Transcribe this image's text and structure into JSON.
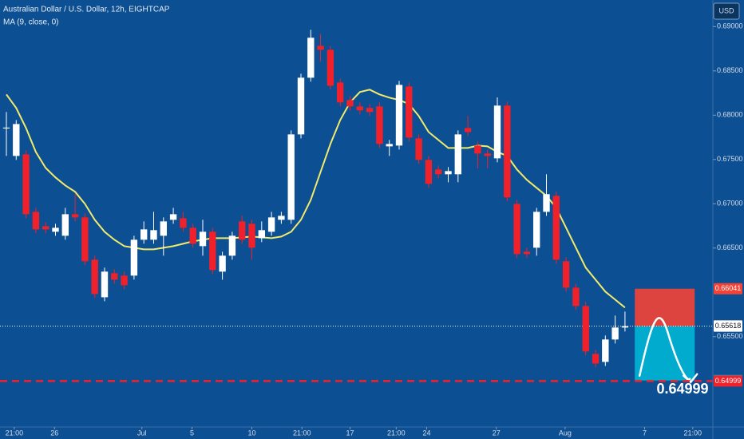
{
  "chart_data": {
    "type": "candlestick",
    "title": "Australian Dollar / U.S. Dollar, 12h, EIGHTCAP",
    "currency": "USD",
    "up_color": "#ffffff",
    "down_color": "#f0212b",
    "open": [
      0.6785,
      0.6754,
      0.67558,
      0.66909,
      0.66747,
      0.66684,
      0.66639,
      0.66882,
      0.66846,
      0.66369,
      0.65945,
      0.66216,
      0.66189,
      0.66189,
      0.66594,
      0.66594,
      0.66639,
      0.66819,
      0.66837,
      0.66729,
      0.66522,
      0.66684,
      0.66234,
      0.66414,
      0.66801,
      0.66774,
      0.66612,
      0.66684,
      0.66819,
      0.66819,
      0.67783,
      0.68423,
      0.68783,
      0.68738,
      0.68369,
      0.68171,
      0.68099,
      0.68081,
      0.68099,
      0.67648,
      0.67657,
      0.68324,
      0.67738,
      0.67495,
      0.67387,
      0.67333,
      0.67333,
      0.67855,
      0.67657,
      0.67567,
      0.67513,
      0.68108,
      0.66999,
      0.66459,
      0.66504,
      0.66909,
      0.6709,
      0.66351,
      0.66053,
      0.65846,
      0.65306,
      0.65215,
      0.65468,
      0.65603
    ],
    "high": [
      0.68036,
      0.67945,
      0.67603,
      0.66954,
      0.66792,
      0.66774,
      0.66954,
      0.67108,
      0.66891,
      0.66414,
      0.66279,
      0.66261,
      0.66234,
      0.66639,
      0.66801,
      0.66909,
      0.66846,
      0.66954,
      0.66909,
      0.66774,
      0.66819,
      0.66729,
      0.66459,
      0.66684,
      0.66864,
      0.66819,
      0.66801,
      0.66909,
      0.66909,
      0.67828,
      0.68468,
      0.68964,
      0.68919,
      0.68783,
      0.68414,
      0.68216,
      0.68144,
      0.68126,
      0.68144,
      0.6772,
      0.68387,
      0.68369,
      0.67783,
      0.6754,
      0.67432,
      0.67414,
      0.67828,
      0.6799,
      0.67702,
      0.67612,
      0.682,
      0.68153,
      0.67044,
      0.66504,
      0.66954,
      0.67333,
      0.67135,
      0.66396,
      0.66098,
      0.65891,
      0.65351,
      0.65513,
      0.65738,
      0.65783
    ],
    "low": [
      0.6754,
      0.67495,
      0.66837,
      0.66666,
      0.66666,
      0.66639,
      0.66594,
      0.66801,
      0.66306,
      0.65936,
      0.659,
      0.66098,
      0.66035,
      0.66144,
      0.66549,
      0.66549,
      0.66414,
      0.66774,
      0.66684,
      0.66504,
      0.66414,
      0.66207,
      0.66143,
      0.66369,
      0.66549,
      0.66369,
      0.66567,
      0.66639,
      0.66774,
      0.66774,
      0.67738,
      0.68378,
      0.68603,
      0.68288,
      0.68099,
      0.68054,
      0.68009,
      0.67991,
      0.6763,
      0.6754,
      0.67612,
      0.67702,
      0.6745,
      0.6718,
      0.67288,
      0.67243,
      0.67243,
      0.67765,
      0.674,
      0.674,
      0.67468,
      0.67027,
      0.66387,
      0.66387,
      0.66414,
      0.66864,
      0.66324,
      0.66008,
      0.65801,
      0.65288,
      0.65152,
      0.6517,
      0.65423,
      0.65558
    ],
    "close": [
      0.6786,
      0.679,
      0.66882,
      0.66711,
      0.66711,
      0.66729,
      0.66882,
      0.66846,
      0.66351,
      0.65981,
      0.66234,
      0.66143,
      0.6608,
      0.66594,
      0.66711,
      0.66702,
      0.66801,
      0.66882,
      0.66729,
      0.66549,
      0.66684,
      0.66252,
      0.66414,
      0.66639,
      0.66594,
      0.66504,
      0.66702,
      0.66846,
      0.66864,
      0.67783,
      0.68423,
      0.68874,
      0.68738,
      0.68333,
      0.68144,
      0.68099,
      0.68054,
      0.68036,
      0.67675,
      0.67675,
      0.68342,
      0.67747,
      0.67495,
      0.67225,
      0.67333,
      0.67369,
      0.67783,
      0.6781,
      0.67567,
      0.6754,
      0.68108,
      0.67072,
      0.66432,
      0.66432,
      0.66909,
      0.67108,
      0.66369,
      0.66053,
      0.65846,
      0.65333,
      0.65197,
      0.65468,
      0.65603,
      0.65618
    ],
    "ma": {
      "name": "MA (9, close, 0)",
      "color": "#f3ea6a",
      "values": [
        0.68234,
        0.68081,
        0.67855,
        0.67585,
        0.67405,
        0.67297,
        0.67207,
        0.67135,
        0.66999,
        0.66819,
        0.66684,
        0.66594,
        0.66522,
        0.66504,
        0.66486,
        0.66486,
        0.66504,
        0.66522,
        0.66549,
        0.66576,
        0.66594,
        0.66612,
        0.66612,
        0.66612,
        0.66621,
        0.6663,
        0.66621,
        0.66612,
        0.6663,
        0.66684,
        0.66819,
        0.67044,
        0.6736,
        0.67675,
        0.67945,
        0.68144,
        0.68261,
        0.68288,
        0.68234,
        0.68198,
        0.68171,
        0.68126,
        0.67991,
        0.6781,
        0.6772,
        0.6763,
        0.6763,
        0.6763,
        0.67657,
        0.67648,
        0.67585,
        0.6754,
        0.67387,
        0.6727,
        0.6718,
        0.6709,
        0.66954,
        0.66729,
        0.66504,
        0.66279,
        0.66143,
        0.66008,
        0.65918,
        0.65828
      ]
    },
    "xlim": [
      -0.65,
      71.95
    ],
    "ylim": [
      0.6448,
      0.693
    ],
    "xticks": [
      {
        "value": 0.8,
        "label": "21:00"
      },
      {
        "value": 4.9,
        "label": "26"
      },
      {
        "value": 13.8,
        "label": "Jul"
      },
      {
        "value": 18.9,
        "label": "5"
      },
      {
        "value": 25,
        "label": "10"
      },
      {
        "value": 30.1,
        "label": "21:00"
      },
      {
        "value": 35,
        "label": "17"
      },
      {
        "value": 39.7,
        "label": "21:00"
      },
      {
        "value": 42.8,
        "label": "24"
      },
      {
        "value": 49.9,
        "label": "27"
      },
      {
        "value": 56.9,
        "label": "Aug"
      },
      {
        "value": 65,
        "label": "7"
      },
      {
        "value": 69.9,
        "label": "21:00"
      }
    ],
    "yticks": [
      {
        "value": 0.69,
        "label": "0.69000"
      },
      {
        "value": 0.685,
        "label": "0.68500"
      },
      {
        "value": 0.68,
        "label": "0.68000"
      },
      {
        "value": 0.675,
        "label": "0.67500"
      },
      {
        "value": 0.67,
        "label": "0.67000"
      },
      {
        "value": 0.665,
        "label": "0.66500"
      },
      {
        "value": 0.655,
        "label": "0.65500"
      }
    ],
    "position": {
      "start": 64,
      "end": 70.1,
      "stop": 0.66041,
      "entry": 0.65618,
      "target": 0.65005,
      "stop_color": "#f44336",
      "target_color": "#00b5d4"
    },
    "levels": [
      {
        "value": 0.66041,
        "color": "#f44336"
      },
      {
        "value": 0.65624,
        "color": "#8b8f98"
      },
      {
        "value": 0.65618,
        "color": "#ffffff",
        "line": "dotted"
      },
      {
        "value": 0.65005,
        "color": "#00b5d4"
      },
      {
        "value": 0.64999,
        "color": "#f0212b",
        "line": "dashed"
      }
    ],
    "target_level": 4
  }
}
